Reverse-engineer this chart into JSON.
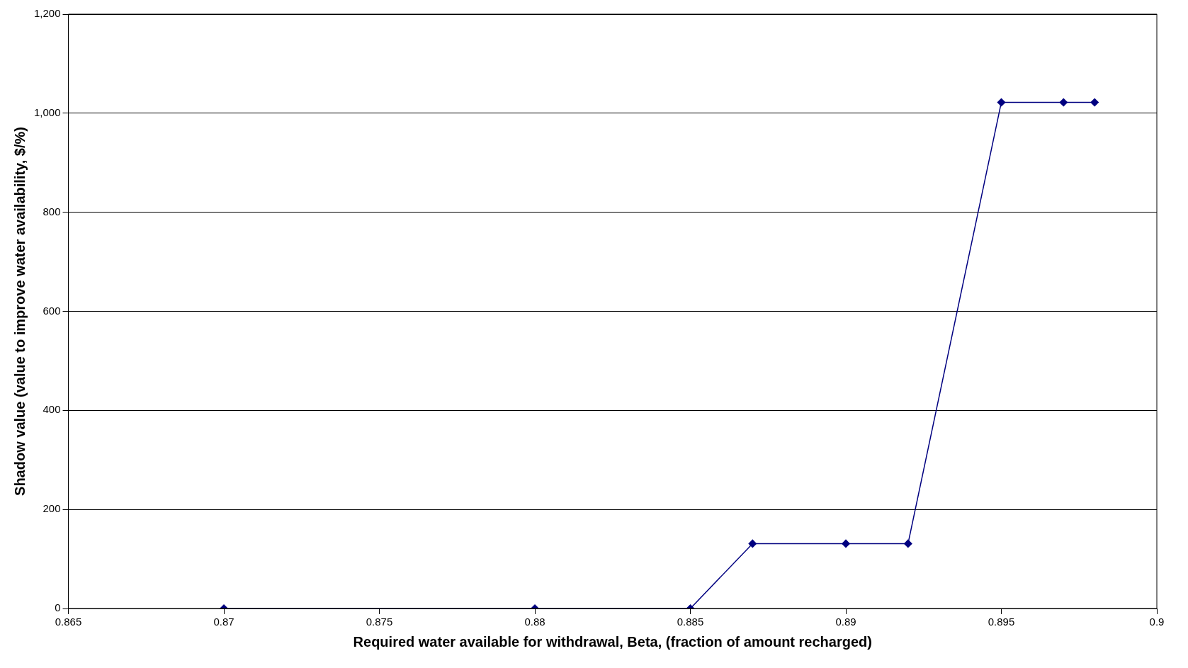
{
  "chart_data": {
    "type": "line",
    "xlabel": "Required water available for withdrawal, Beta, (fraction of amount recharged)",
    "ylabel": "Shadow value (value to improve water availability, $/%)",
    "x": [
      0.87,
      0.88,
      0.885,
      0.887,
      0.89,
      0.892,
      0.895,
      0.897,
      0.898
    ],
    "series": [
      {
        "color": "#000080",
        "values": [
          0,
          0,
          0,
          131,
          131,
          131,
          1022,
          1022,
          1022
        ]
      }
    ],
    "xlim": [
      0.865,
      0.9
    ],
    "xticks": [
      0.865,
      0.87,
      0.875,
      0.88,
      0.885,
      0.89,
      0.895,
      0.9
    ],
    "ylim": [
      0,
      1200
    ],
    "yticks": [
      0,
      200,
      400,
      600,
      800,
      {
        "value": 1000,
        "label": "1,000"
      },
      {
        "value": 1200,
        "label": "1,200"
      }
    ],
    "grid": "y",
    "legend": false,
    "marker": "diamond",
    "line_style": "solid"
  }
}
